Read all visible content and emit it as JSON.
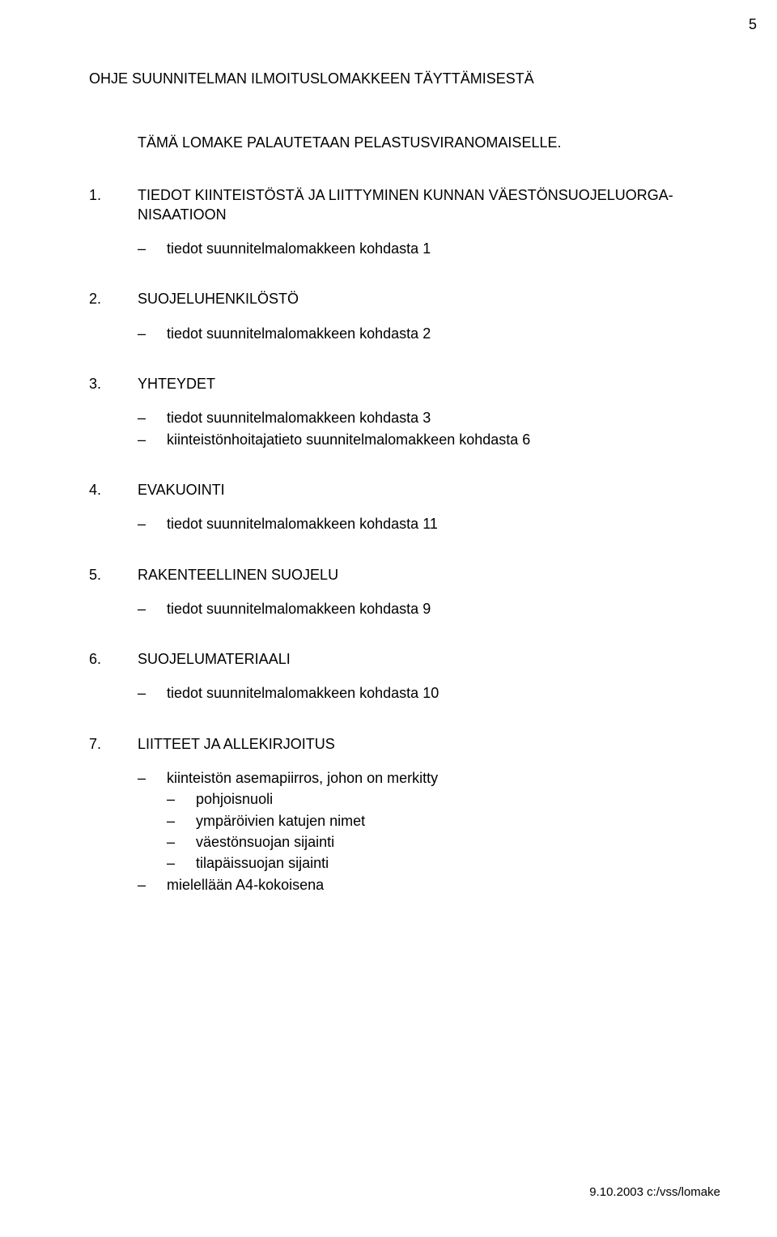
{
  "page_number": "5",
  "title": "OHJE SUUNNITELMAN ILMOITUSLOMAKKEEN TÄYTTÄMISESTÄ",
  "intro": "TÄMÄ LOMAKE PALAUTETAAN PELASTUSVIRANOMAISELLE.",
  "sections": [
    {
      "num": "1.",
      "title": "TIEDOT KIINTEISTÖSTÄ JA LIITTYMINEN KUNNAN VÄESTÖNSUOJELUORGA-NISAATIOON",
      "bullets": [
        {
          "text": "tiedot suunnitelmalomakkeen kohdasta 1"
        }
      ]
    },
    {
      "num": "2.",
      "title": "SUOJELUHENKILÖSTÖ",
      "bullets": [
        {
          "text": "tiedot suunnitelmalomakkeen kohdasta 2"
        }
      ]
    },
    {
      "num": "3.",
      "title": "YHTEYDET",
      "bullets": [
        {
          "text": "tiedot suunnitelmalomakkeen kohdasta 3"
        },
        {
          "text": "kiinteistönhoitajatieto suunnitelmalomakkeen kohdasta 6"
        }
      ]
    },
    {
      "num": "4.",
      "title": "EVAKUOINTI",
      "bullets": [
        {
          "text": "tiedot suunnitelmalomakkeen kohdasta 11"
        }
      ]
    },
    {
      "num": "5.",
      "title": "RAKENTEELLINEN SUOJELU",
      "bullets": [
        {
          "text": "tiedot suunnitelmalomakkeen kohdasta 9"
        }
      ]
    },
    {
      "num": "6.",
      "title": "SUOJELUMATERIAALI",
      "bullets": [
        {
          "text": "tiedot suunnitelmalomakkeen kohdasta 10"
        }
      ]
    },
    {
      "num": "7.",
      "title": "LIITTEET JA ALLEKIRJOITUS",
      "bullets": [
        {
          "text": "kiinteistön asemapiirros, johon on merkitty",
          "subs": [
            "pohjoisnuoli",
            "ympäröivien katujen nimet",
            "väestönsuojan sijainti",
            "tilapäissuojan sijainti"
          ]
        },
        {
          "text": "mielellään A4-kokoisena"
        }
      ]
    }
  ],
  "footer": "9.10.2003 c:/vss/lomake",
  "dash_char": "–"
}
